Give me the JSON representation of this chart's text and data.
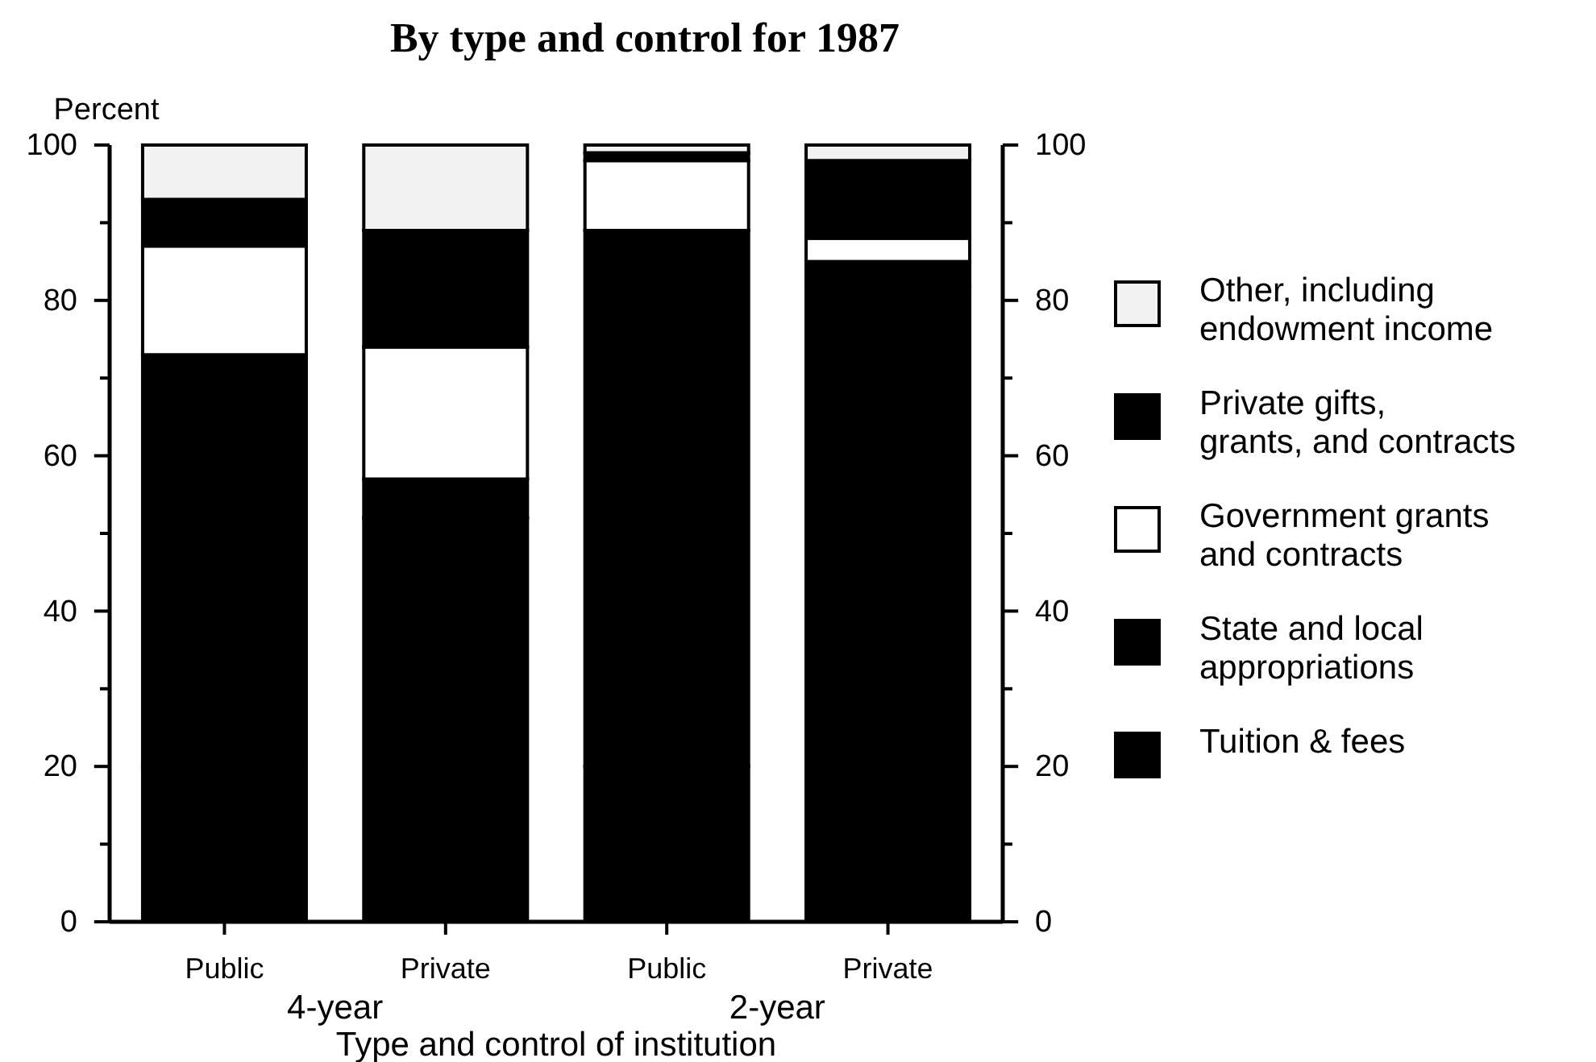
{
  "chart_data": {
    "type": "bar",
    "stacked": true,
    "title": "By type and control for 1987",
    "ylabel": "Percent",
    "xlabel": "Type and control of institution",
    "categories": [
      "Public",
      "Private",
      "Public",
      "Private"
    ],
    "series": [
      {
        "name": "Tuition & fees",
        "color": "#000000",
        "values": [
          20,
          52,
          20,
          82
        ]
      },
      {
        "name": "State and local appropriations",
        "color": "#000000",
        "values": [
          53,
          5,
          69,
          3
        ]
      },
      {
        "name": "Government grants and contracts",
        "color": "#ffffff",
        "values": [
          14,
          17,
          9,
          3
        ]
      },
      {
        "name": "Private gifts, grants, and contracts",
        "color": "#000000",
        "values": [
          6,
          15,
          1,
          10
        ]
      },
      {
        "name": "Other, including endowment income",
        "color": "#f2f2f2",
        "values": [
          7,
          11,
          1,
          2
        ]
      }
    ],
    "annotations": [
      "4-year",
      "2-year"
    ],
    "ylim": [
      0,
      100
    ],
    "yticks": [
      0,
      {
        "value": 10,
        "label": null
      },
      20,
      {
        "value": 30,
        "label": null
      },
      40,
      {
        "value": 50,
        "label": null
      },
      60,
      {
        "value": 70,
        "label": null
      },
      80,
      {
        "value": 90,
        "label": null
      },
      100
    ],
    "y2lim": [
      0,
      100
    ],
    "y2ticks": [
      0,
      {
        "value": 10,
        "label": null
      },
      20,
      {
        "value": 30,
        "label": null
      },
      40,
      {
        "value": 50,
        "label": null
      },
      60,
      {
        "value": 70,
        "label": null
      },
      80,
      {
        "value": 90,
        "label": null
      },
      100
    ],
    "legend": "right",
    "grid": false
  }
}
